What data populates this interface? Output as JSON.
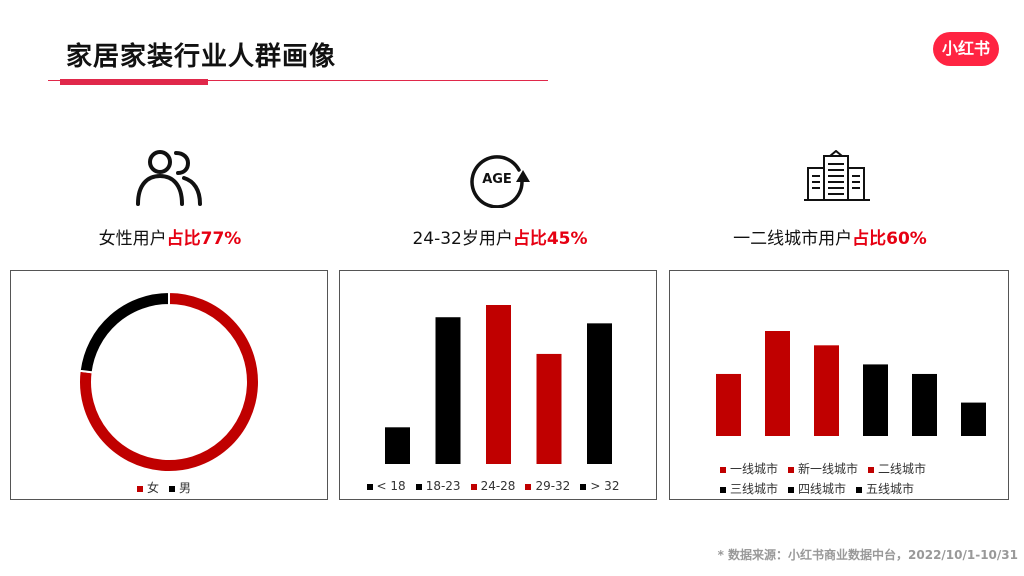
{
  "title": "家居家装行业人群画像",
  "logo_text": "小红书",
  "stats": [
    {
      "prefix": "女性用户",
      "highlight": "占比77%",
      "icon": "users-icon"
    },
    {
      "prefix": "24-32岁用户",
      "highlight": "占比45%",
      "icon": "age-icon"
    },
    {
      "prefix": "一二线城市用户",
      "highlight": "占比60%",
      "icon": "building-icon"
    }
  ],
  "footnote": "* 数据来源：小红书商业数据中台，2022/10/1-10/31",
  "colors": {
    "red": "#c00000",
    "black": "#000000",
    "accent": "#e0284a"
  },
  "chart_data": [
    {
      "type": "pie",
      "variant": "donut",
      "categories": [
        "女",
        "男"
      ],
      "values": [
        77,
        23
      ],
      "colors": [
        "#c00000",
        "#000000"
      ],
      "legend_position": "bottom"
    },
    {
      "type": "bar",
      "categories": [
        "< 18",
        "18-23",
        "24-28",
        "29-32",
        "> 32"
      ],
      "values": [
        6,
        24,
        26,
        18,
        23
      ],
      "colors": [
        "#000000",
        "#000000",
        "#c00000",
        "#c00000",
        "#000000"
      ],
      "legend_position": "bottom"
    },
    {
      "type": "bar",
      "categories": [
        "一线城市",
        "新一线城市",
        "二线城市",
        "三线城市",
        "四线城市",
        "五线城市"
      ],
      "values": [
        13,
        22,
        19,
        15,
        13,
        7
      ],
      "colors": [
        "#c00000",
        "#c00000",
        "#c00000",
        "#000000",
        "#000000",
        "#000000"
      ],
      "legend_position": "bottom"
    }
  ]
}
